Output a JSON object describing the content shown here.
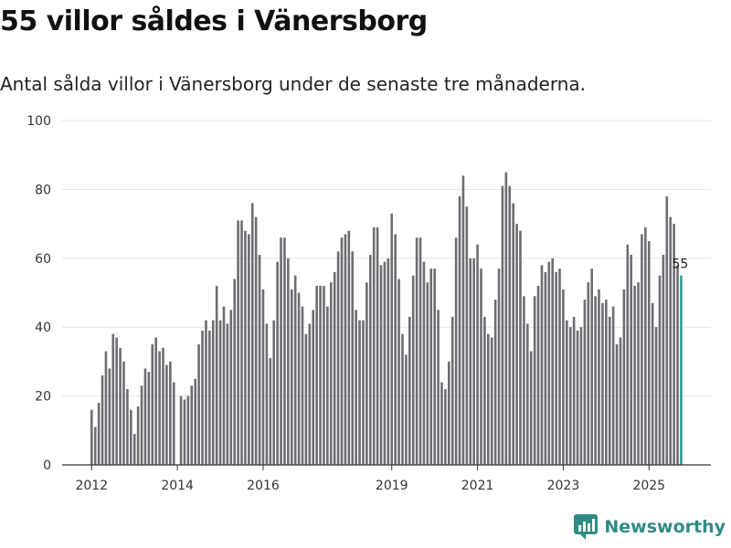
{
  "title": "55 villor såldes i Vänersborg",
  "subtitle": "Antal sålda villor i Vänersborg under de senaste tre månaderna.",
  "brand": {
    "name": "Newsworthy",
    "color": "#2f8c84",
    "icon": "newsworthy-logo-icon"
  },
  "chart_data": {
    "type": "bar",
    "title": "55 villor såldes i Vänersborg",
    "xlabel": "",
    "ylabel": "",
    "ylim": [
      0,
      100
    ],
    "yticks": [
      0,
      20,
      40,
      60,
      80,
      100
    ],
    "grid": true,
    "bar_color": "#6e6d72",
    "highlight_color": "#2a9d8f",
    "start": "2012-01",
    "xticks": [
      {
        "label": "2012",
        "index": 0
      },
      {
        "label": "2014",
        "index": 24
      },
      {
        "label": "2016",
        "index": 48
      },
      {
        "label": "2019",
        "index": 84
      },
      {
        "label": "2021",
        "index": 108
      },
      {
        "label": "2023",
        "index": 132
      },
      {
        "label": "2025",
        "index": 156
      }
    ],
    "values": [
      16,
      11,
      18,
      26,
      33,
      28,
      38,
      37,
      34,
      30,
      22,
      16,
      9,
      17,
      23,
      28,
      27,
      35,
      37,
      33,
      34,
      29,
      30,
      24,
      0,
      20,
      19,
      20,
      23,
      25,
      35,
      39,
      42,
      39,
      42,
      52,
      42,
      46,
      41,
      45,
      54,
      71,
      71,
      68,
      67,
      76,
      72,
      61,
      51,
      41,
      31,
      42,
      59,
      66,
      66,
      60,
      51,
      55,
      50,
      46,
      38,
      41,
      45,
      52,
      52,
      52,
      46,
      53,
      56,
      62,
      66,
      67,
      68,
      62,
      45,
      42,
      42,
      53,
      61,
      69,
      69,
      58,
      59,
      60,
      73,
      67,
      54,
      38,
      32,
      43,
      55,
      66,
      66,
      59,
      53,
      57,
      57,
      45,
      24,
      22,
      30,
      43,
      66,
      78,
      84,
      75,
      60,
      60,
      64,
      57,
      43,
      38,
      37,
      48,
      57,
      81,
      85,
      81,
      76,
      70,
      68,
      49,
      41,
      33,
      49,
      52,
      58,
      56,
      59,
      60,
      56,
      57,
      51,
      42,
      40,
      43,
      39,
      40,
      48,
      53,
      57,
      49,
      51,
      47,
      48,
      43,
      46,
      35,
      37,
      51,
      64,
      61,
      52,
      53,
      67,
      69,
      65,
      47,
      40,
      55,
      61,
      78,
      72,
      70,
      58,
      55
    ],
    "highlight_index": 165,
    "annotations": [
      {
        "index": 165,
        "text": "55"
      }
    ]
  }
}
